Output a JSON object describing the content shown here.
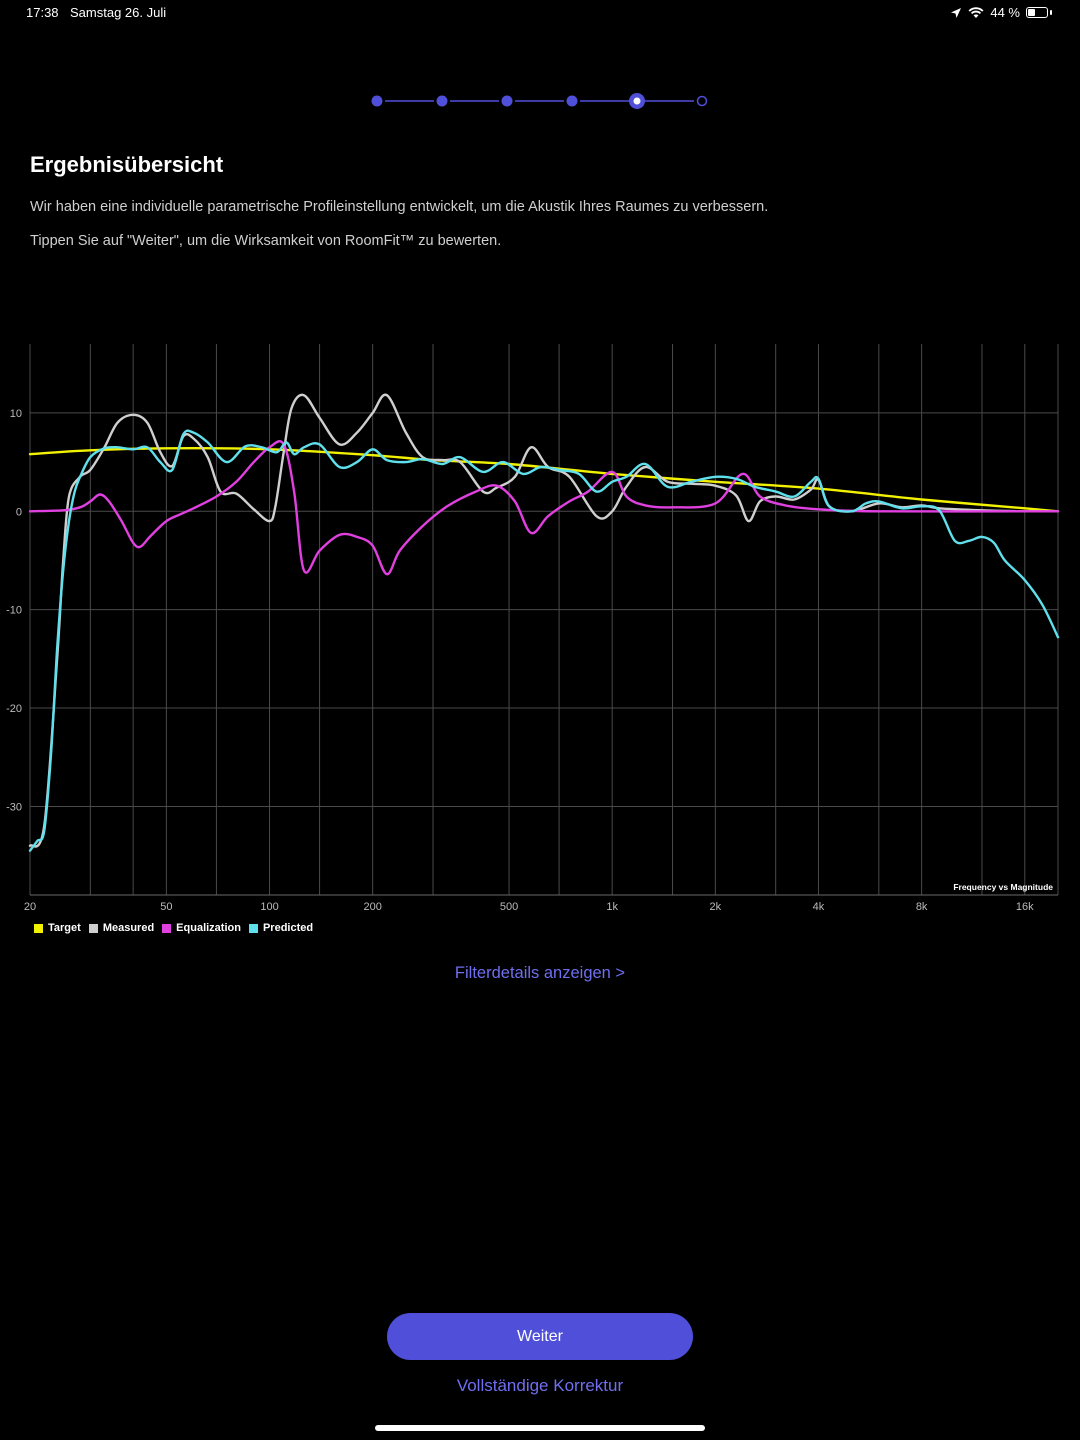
{
  "status_bar": {
    "time": "17:38",
    "date": "Samstag 26. Juli",
    "battery_text": "44 %",
    "battery_level": 0.44,
    "icons": [
      "location-arrow-icon",
      "wifi-icon",
      "battery-icon"
    ]
  },
  "stepper": {
    "total_steps": 6,
    "current_step": 5
  },
  "page": {
    "title": "Ergebnisübersicht",
    "description_1": "Wir haben eine individuelle parametrische Profileinstellung entwickelt, um die Akustik Ihres Raumes zu verbessern.",
    "description_2": "Tippen Sie auf  \"Weiter\", um die Wirksamkeit von RoomFit™ zu bewerten."
  },
  "colors": {
    "accent": "#4f4fd9",
    "link": "#6f6ff0",
    "target": "#f2f200",
    "measured": "#cfcfcf",
    "equalization": "#e040e0",
    "predicted": "#5fe0ec"
  },
  "chart_data": {
    "type": "line",
    "annotation": "Frequency vs Magnitude",
    "x_scale": "log",
    "xlim": [
      20,
      20000
    ],
    "ylim": [
      -39,
      17
    ],
    "grid": true,
    "x_tick_labels": [
      {
        "value": 20,
        "label": "20"
      },
      {
        "value": 50,
        "label": "50"
      },
      {
        "value": 100,
        "label": "100"
      },
      {
        "value": 200,
        "label": "200"
      },
      {
        "value": 500,
        "label": "500"
      },
      {
        "value": 1000,
        "label": "1k"
      },
      {
        "value": 2000,
        "label": "2k"
      },
      {
        "value": 4000,
        "label": "4k"
      },
      {
        "value": 8000,
        "label": "8k"
      },
      {
        "value": 16000,
        "label": "16k"
      }
    ],
    "x_gridlines": [
      20,
      30,
      40,
      50,
      70,
      100,
      140,
      200,
      300,
      500,
      700,
      1000,
      1500,
      2000,
      3000,
      4000,
      6000,
      8000,
      12000,
      16000,
      20000
    ],
    "y_ticks": [
      10,
      0,
      -10,
      -20,
      -30
    ],
    "legend_position": "bottom-left",
    "series": [
      {
        "name": "Target",
        "color": "#f2f200",
        "points": [
          [
            20,
            5.8
          ],
          [
            30,
            6.2
          ],
          [
            50,
            6.4
          ],
          [
            100,
            6.3
          ],
          [
            200,
            5.7
          ],
          [
            300,
            5.2
          ],
          [
            500,
            4.8
          ],
          [
            1000,
            3.8
          ],
          [
            2000,
            3.0
          ],
          [
            4000,
            2.3
          ],
          [
            8000,
            1.2
          ],
          [
            16000,
            0.3
          ],
          [
            20000,
            0
          ]
        ]
      },
      {
        "name": "Measured",
        "color": "#cfcfcf",
        "points": [
          [
            20,
            -34
          ],
          [
            22,
            -32
          ],
          [
            24,
            -15
          ],
          [
            25,
            -5
          ],
          [
            26,
            1.5
          ],
          [
            28,
            3.5
          ],
          [
            30,
            4.2
          ],
          [
            33,
            6.5
          ],
          [
            36,
            9
          ],
          [
            40,
            9.8
          ],
          [
            44,
            9
          ],
          [
            48,
            6
          ],
          [
            52,
            4.6
          ],
          [
            56,
            7.6
          ],
          [
            60,
            7.4
          ],
          [
            66,
            5.5
          ],
          [
            72,
            2
          ],
          [
            80,
            1.8
          ],
          [
            90,
            0.2
          ],
          [
            100,
            -1
          ],
          [
            104,
            0.5
          ],
          [
            110,
            6
          ],
          [
            116,
            10.5
          ],
          [
            126,
            11.8
          ],
          [
            140,
            9.5
          ],
          [
            160,
            6.8
          ],
          [
            180,
            8
          ],
          [
            200,
            10
          ],
          [
            220,
            11.8
          ],
          [
            250,
            8
          ],
          [
            280,
            5.5
          ],
          [
            320,
            5.2
          ],
          [
            360,
            5
          ],
          [
            420,
            2
          ],
          [
            460,
            2.4
          ],
          [
            520,
            3.5
          ],
          [
            580,
            6.5
          ],
          [
            650,
            4.5
          ],
          [
            750,
            3.5
          ],
          [
            900,
            -0.5
          ],
          [
            1000,
            0
          ],
          [
            1100,
            2.5
          ],
          [
            1250,
            4.5
          ],
          [
            1450,
            3
          ],
          [
            1700,
            2.8
          ],
          [
            2000,
            2.6
          ],
          [
            2300,
            1.6
          ],
          [
            2500,
            -1
          ],
          [
            2700,
            1
          ],
          [
            3000,
            1.5
          ],
          [
            3400,
            1.2
          ],
          [
            3800,
            2.2
          ],
          [
            4000,
            3.2
          ],
          [
            4300,
            0.5
          ],
          [
            5000,
            0
          ],
          [
            6000,
            0.8
          ],
          [
            7000,
            0.4
          ],
          [
            8000,
            0.6
          ],
          [
            9000,
            0.3
          ],
          [
            12000,
            0.1
          ],
          [
            16000,
            0
          ],
          [
            20000,
            0
          ]
        ]
      },
      {
        "name": "Equalization",
        "color": "#e040e0",
        "points": [
          [
            20,
            0
          ],
          [
            25,
            0.1
          ],
          [
            28,
            0.4
          ],
          [
            30,
            1
          ],
          [
            32,
            1.7
          ],
          [
            34,
            1
          ],
          [
            37,
            -1
          ],
          [
            40,
            -3.2
          ],
          [
            42,
            -3.6
          ],
          [
            45,
            -2.5
          ],
          [
            50,
            -1
          ],
          [
            55,
            -0.3
          ],
          [
            60,
            0.3
          ],
          [
            70,
            1.5
          ],
          [
            80,
            3
          ],
          [
            90,
            5
          ],
          [
            100,
            6.5
          ],
          [
            110,
            6.8
          ],
          [
            118,
            2
          ],
          [
            126,
            -6
          ],
          [
            140,
            -4
          ],
          [
            160,
            -2.4
          ],
          [
            180,
            -2.6
          ],
          [
            200,
            -3.5
          ],
          [
            220,
            -6.4
          ],
          [
            240,
            -4
          ],
          [
            280,
            -1.5
          ],
          [
            330,
            0.5
          ],
          [
            400,
            2
          ],
          [
            460,
            2.6
          ],
          [
            520,
            1
          ],
          [
            580,
            -2.2
          ],
          [
            650,
            -0.5
          ],
          [
            750,
            1
          ],
          [
            850,
            2
          ],
          [
            1000,
            4
          ],
          [
            1100,
            1.5
          ],
          [
            1250,
            0.6
          ],
          [
            1500,
            0.4
          ],
          [
            2000,
            0.8
          ],
          [
            2400,
            3.8
          ],
          [
            2700,
            1.5
          ],
          [
            3200,
            0.6
          ],
          [
            4000,
            0.2
          ],
          [
            6000,
            0
          ],
          [
            20000,
            0
          ]
        ]
      },
      {
        "name": "Predicted",
        "color": "#5fe0ec",
        "points": [
          [
            20,
            -34.5
          ],
          [
            21,
            -33.5
          ],
          [
            22,
            -32.5
          ],
          [
            23,
            -25
          ],
          [
            24,
            -14
          ],
          [
            25,
            -6
          ],
          [
            26,
            -1
          ],
          [
            27,
            2
          ],
          [
            28,
            3.5
          ],
          [
            30,
            5.5
          ],
          [
            33,
            6.4
          ],
          [
            36,
            6.5
          ],
          [
            40,
            6.3
          ],
          [
            44,
            6.5
          ],
          [
            48,
            5
          ],
          [
            52,
            4.2
          ],
          [
            56,
            7.8
          ],
          [
            60,
            8
          ],
          [
            66,
            7
          ],
          [
            75,
            5
          ],
          [
            85,
            6.6
          ],
          [
            95,
            6.5
          ],
          [
            105,
            6
          ],
          [
            112,
            7
          ],
          [
            118,
            5.8
          ],
          [
            126,
            6.5
          ],
          [
            140,
            6.8
          ],
          [
            160,
            4.5
          ],
          [
            180,
            5
          ],
          [
            200,
            6.3
          ],
          [
            220,
            5.2
          ],
          [
            250,
            5
          ],
          [
            280,
            5.3
          ],
          [
            320,
            4.8
          ],
          [
            360,
            5.5
          ],
          [
            420,
            4
          ],
          [
            480,
            5
          ],
          [
            550,
            3.8
          ],
          [
            620,
            4.5
          ],
          [
            700,
            4.2
          ],
          [
            800,
            3.8
          ],
          [
            900,
            2
          ],
          [
            1000,
            3
          ],
          [
            1100,
            3.5
          ],
          [
            1250,
            4.8
          ],
          [
            1450,
            2.5
          ],
          [
            1700,
            3
          ],
          [
            2000,
            3.5
          ],
          [
            2300,
            3.3
          ],
          [
            2600,
            2.5
          ],
          [
            3000,
            2
          ],
          [
            3400,
            1.5
          ],
          [
            3800,
            3
          ],
          [
            4000,
            3.3
          ],
          [
            4300,
            0.5
          ],
          [
            5000,
            0
          ],
          [
            5500,
            0.8
          ],
          [
            6000,
            1
          ],
          [
            7000,
            0.3
          ],
          [
            8000,
            0.5
          ],
          [
            9000,
            0.1
          ],
          [
            10000,
            -3
          ],
          [
            11000,
            -3
          ],
          [
            12000,
            -2.6
          ],
          [
            13000,
            -3.2
          ],
          [
            14000,
            -5
          ],
          [
            16000,
            -7
          ],
          [
            18000,
            -9.5
          ],
          [
            20000,
            -12.8
          ]
        ]
      }
    ]
  },
  "links": {
    "filter_details": "Filterdetails anzeigen >",
    "full_correction": "Vollständige Korrektur"
  },
  "buttons": {
    "continue": "Weiter"
  }
}
